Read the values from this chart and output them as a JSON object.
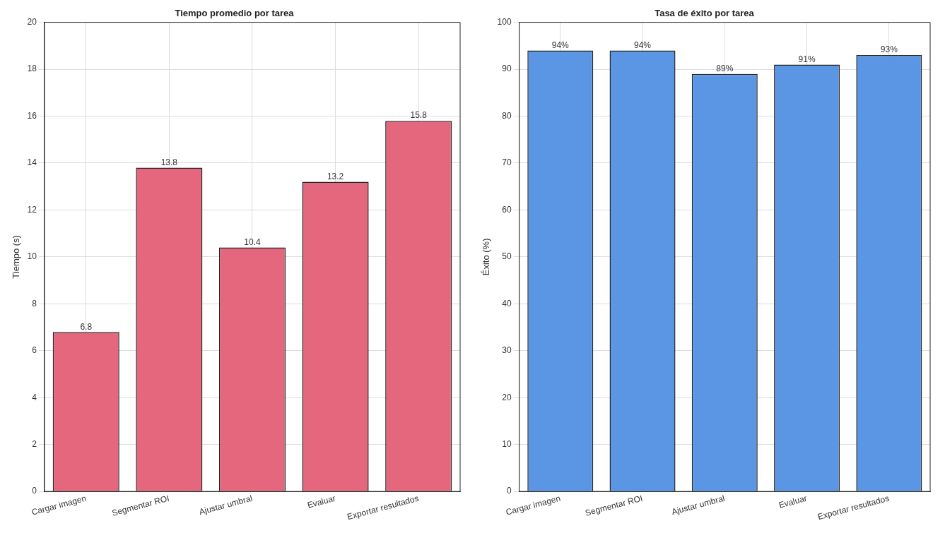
{
  "chart_data": [
    {
      "type": "bar",
      "title": "Tiempo promedio por tarea",
      "ylabel": "Tiempo (s)",
      "categories": [
        "Cargar imagen",
        "Segmentar ROI",
        "Ajustar umbral",
        "Evaluar",
        "Exportar resultados"
      ],
      "values": [
        6.8,
        13.8,
        10.4,
        13.2,
        15.8
      ],
      "color": "#e4677e",
      "ylim": [
        0,
        20
      ],
      "yticks": [
        0,
        2,
        4,
        6,
        8,
        10,
        12,
        14,
        16,
        18,
        20
      ],
      "grid": true,
      "data_labels": true
    },
    {
      "type": "bar",
      "title": "Tasa de éxito por tarea",
      "ylabel": "Éxito (%)",
      "categories": [
        "Cargar imagen",
        "Segmentar ROI",
        "Ajustar umbral",
        "Evaluar",
        "Exportar resultados"
      ],
      "values": [
        94,
        94,
        89,
        91,
        93
      ],
      "value_labels": [
        "94%",
        "94%",
        "89%",
        "91%",
        "93%"
      ],
      "color": "#5a96e3",
      "ylim": [
        0,
        100
      ],
      "yticks": [
        0,
        10,
        20,
        30,
        40,
        50,
        60,
        70,
        80,
        90,
        100
      ],
      "grid": true
    }
  ]
}
